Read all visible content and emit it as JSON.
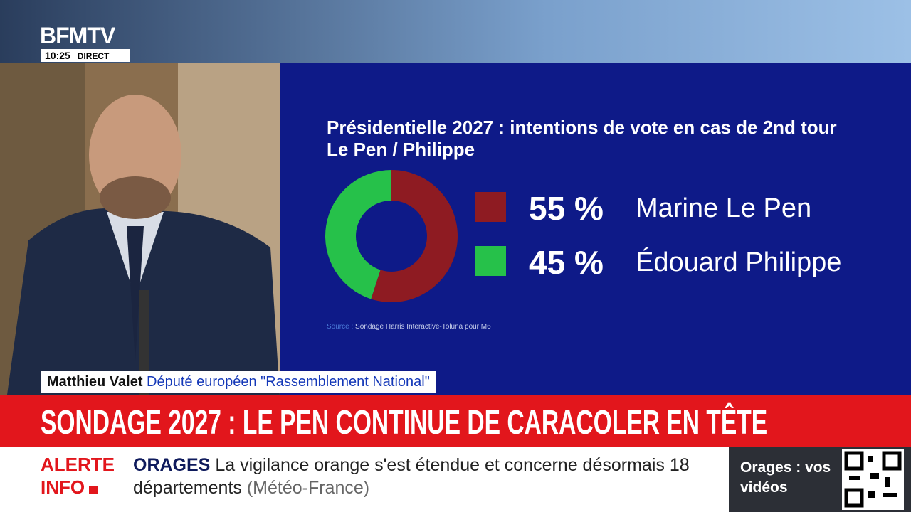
{
  "header": {
    "logo": "BFMTV",
    "time": "10:25",
    "live": "DIRECT"
  },
  "chart_data": {
    "type": "pie",
    "donut": true,
    "title": "Présidentielle 2027 : intentions de vote en cas de 2nd tour Le Pen / Philippe",
    "categories": [
      "Marine Le Pen",
      "Édouard Philippe"
    ],
    "values": [
      55,
      45
    ],
    "value_labels": [
      "55 %",
      "45 %"
    ],
    "colors": [
      "#8e1b22",
      "#26c14a"
    ],
    "source_label": "Source :",
    "source": "Sondage Harris Interactive-Toluna pour M6"
  },
  "lower_third": {
    "name": "Matthieu Valet",
    "role": "Député européen \"Rassemblement National\""
  },
  "headline": "SONDAGE 2027 : LE PEN CONTINUE DE CARACOLER EN TÊTE",
  "ticker": {
    "label_top": "ALERTE",
    "label_bottom": "INFO",
    "topic": "ORAGES",
    "text": "La vigilance orange s'est étendue et concerne désormais 18 départements",
    "credit": "(Météo-France)"
  },
  "promo": "Orages : vos vidéos"
}
